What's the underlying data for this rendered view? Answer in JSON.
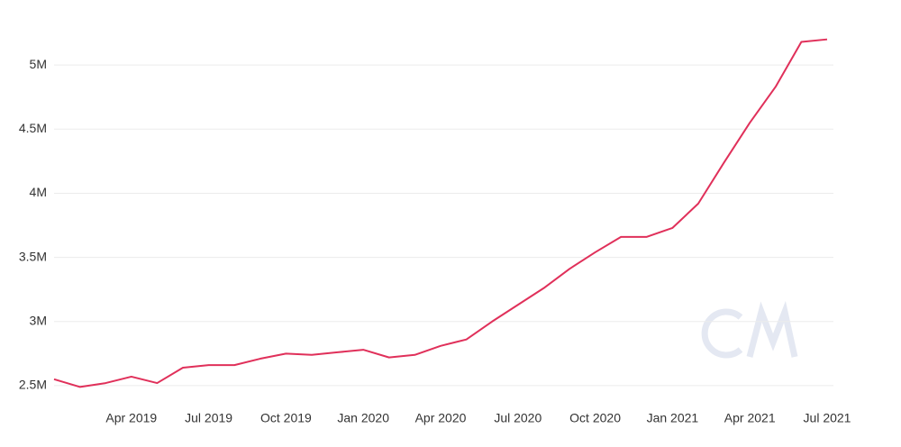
{
  "chart_data": {
    "type": "line",
    "x": [
      "2019-01",
      "2019-02",
      "2019-03",
      "2019-04",
      "2019-05",
      "2019-06",
      "2019-07",
      "2019-08",
      "2019-09",
      "2019-10",
      "2019-11",
      "2019-12",
      "2020-01",
      "2020-02",
      "2020-03",
      "2020-04",
      "2020-05",
      "2020-06",
      "2020-07",
      "2020-08",
      "2020-09",
      "2020-10",
      "2020-11",
      "2020-12",
      "2021-01",
      "2021-02",
      "2021-03",
      "2021-04",
      "2021-05",
      "2021-06",
      "2021-07"
    ],
    "series": [
      {
        "color": "#e0305a",
        "values": [
          2550000,
          2490000,
          2520000,
          2570000,
          2520000,
          2640000,
          2660000,
          2660000,
          2710000,
          2750000,
          2740000,
          2760000,
          2780000,
          2720000,
          2740000,
          2810000,
          2860000,
          3000000,
          3130000,
          3260000,
          3410000,
          3540000,
          3660000,
          3660000,
          3730000,
          3920000,
          4240000,
          4550000,
          4830000,
          5180000,
          5200000
        ]
      }
    ],
    "xlim": [
      "2019-01",
      "2021-07"
    ],
    "xticks": [
      {
        "value": "2019-04",
        "label": "Apr 2019"
      },
      {
        "value": "2019-07",
        "label": "Jul 2019"
      },
      {
        "value": "2019-10",
        "label": "Oct 2019"
      },
      {
        "value": "2020-01",
        "label": "Jan 2020"
      },
      {
        "value": "2020-04",
        "label": "Apr 2020"
      },
      {
        "value": "2020-07",
        "label": "Jul 2020"
      },
      {
        "value": "2020-10",
        "label": "Oct 2020"
      },
      {
        "value": "2021-01",
        "label": "Jan 2021"
      },
      {
        "value": "2021-04",
        "label": "Apr 2021"
      },
      {
        "value": "2021-07",
        "label": "Jul 2021"
      }
    ],
    "ylim": [
      2380000,
      5240000
    ],
    "yticks": [
      {
        "value": 2500000,
        "label": "2.5M"
      },
      {
        "value": 3000000,
        "label": "3M"
      },
      {
        "value": 3500000,
        "label": "3.5M"
      },
      {
        "value": 4000000,
        "label": "4M"
      },
      {
        "value": 4500000,
        "label": "4.5M"
      },
      {
        "value": 5000000,
        "label": "5M"
      }
    ],
    "grid": true
  }
}
